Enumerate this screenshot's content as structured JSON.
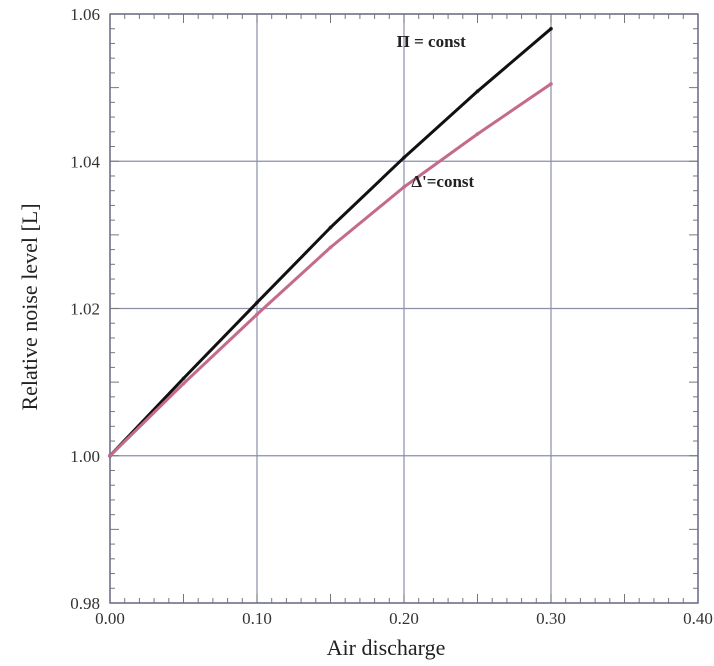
{
  "chart_data": {
    "type": "line",
    "title": "",
    "xlabel": "Air discharge",
    "ylabel": "Relative noise level [L]",
    "xlim": [
      0.0,
      0.4
    ],
    "ylim": [
      0.98,
      1.06
    ],
    "x_ticks": [
      0.0,
      0.1,
      0.2,
      0.3,
      0.4
    ],
    "x_tick_labels": [
      "0.00",
      "0.10",
      "0.20",
      "0.30",
      "0.40"
    ],
    "y_ticks": [
      0.98,
      1.0,
      1.02,
      1.04,
      1.06
    ],
    "y_tick_labels": [
      "0.98",
      "1.00",
      "1.02",
      "1.04",
      "1.06"
    ],
    "grid": true,
    "legend": "none",
    "series": [
      {
        "color": "#111111",
        "x": [
          0.0,
          0.05,
          0.1,
          0.15,
          0.2,
          0.25,
          0.3
        ],
        "y": [
          1.0,
          1.0105,
          1.0208,
          1.031,
          1.0405,
          1.0495,
          1.058
        ]
      },
      {
        "color": "#c46a8a",
        "x": [
          0.0,
          0.05,
          0.1,
          0.15,
          0.2,
          0.25,
          0.3
        ],
        "y": [
          1.0,
          1.0098,
          1.0192,
          1.0283,
          1.0365,
          1.0437,
          1.0505
        ]
      }
    ],
    "annotations": [
      {
        "text": "Π = const",
        "x": 0.195,
        "y": 1.0555,
        "series": 0
      },
      {
        "text": "Δ'=const",
        "x": 0.205,
        "y": 1.0365,
        "series": 1
      }
    ]
  }
}
